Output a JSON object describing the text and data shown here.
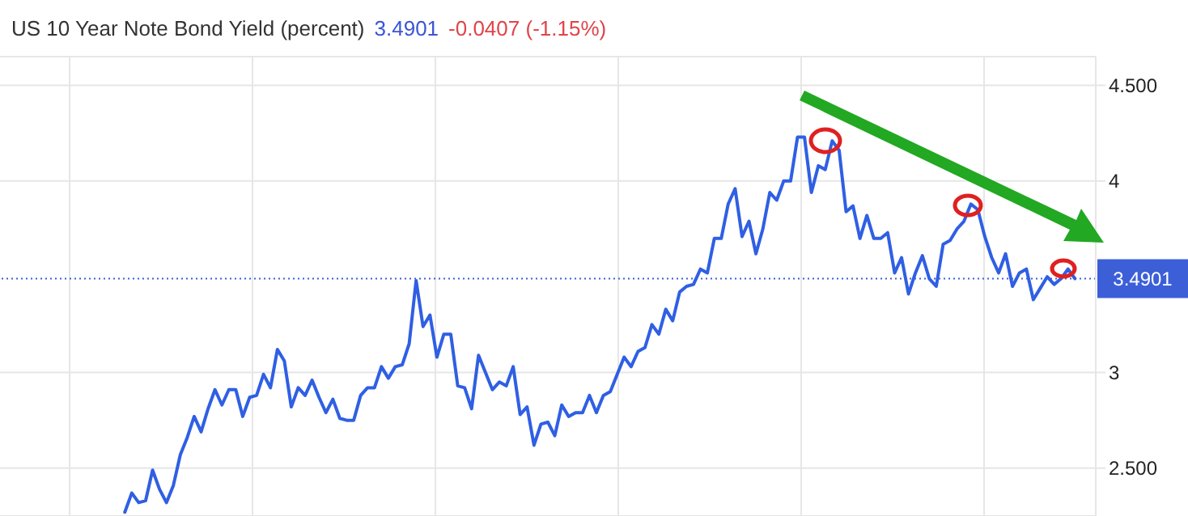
{
  "chart_data": {
    "type": "line",
    "title": "US 10 Year Note Bond Yield (percent)",
    "annotations": [
      "3.4901",
      "-0.0407 (-1.15%)"
    ],
    "categories": [
      null,
      null,
      null,
      null,
      null,
      null,
      null,
      null,
      null,
      null,
      null,
      null,
      null,
      null,
      null,
      null,
      null,
      null,
      null,
      null,
      null,
      null,
      null,
      null,
      null,
      null,
      null,
      null,
      null,
      null,
      null,
      null,
      null,
      null,
      null,
      null,
      null,
      null,
      null,
      null,
      null,
      null,
      null,
      null,
      null,
      null,
      null,
      null,
      null,
      null,
      null,
      null,
      null,
      null,
      null,
      null,
      null,
      null,
      null,
      null,
      null,
      null,
      null,
      null,
      null,
      null,
      null,
      null,
      null,
      null,
      null,
      null,
      null,
      null,
      null,
      null,
      null,
      null,
      null,
      null,
      null,
      null,
      null,
      null,
      null,
      null,
      null,
      null,
      null,
      null,
      null,
      null,
      null,
      null,
      null,
      null,
      null,
      null,
      null,
      null,
      null,
      null,
      null,
      null,
      null,
      null,
      null,
      null,
      null,
      null,
      null,
      null,
      null,
      null,
      null,
      null,
      null,
      null,
      null,
      null,
      null,
      null,
      null,
      null,
      null,
      null,
      null,
      null,
      null,
      null,
      null,
      null,
      null,
      null,
      null,
      null,
      null,
      null,
      null,
      null,
      null,
      null,
      null,
      null,
      null,
      null,
      null,
      null,
      null,
      null,
      null,
      null,
      null,
      null,
      null,
      null,
      null,
      null,
      null
    ],
    "series": [
      {
        "color": "#2f5fe3",
        "values": [
          null,
          null,
          null,
          null,
          null,
          null,
          null,
          null,
          null,
          null,
          null,
          null,
          null,
          null,
          null,
          null,
          null,
          null,
          2.27,
          2.37,
          2.32,
          2.33,
          2.49,
          2.39,
          2.32,
          2.41,
          2.57,
          2.66,
          2.77,
          2.69,
          2.81,
          2.91,
          2.83,
          2.91,
          2.91,
          2.77,
          2.87,
          2.88,
          2.99,
          2.92,
          3.12,
          3.06,
          2.82,
          2.92,
          2.88,
          2.96,
          2.87,
          2.79,
          2.86,
          2.76,
          2.75,
          2.75,
          2.88,
          2.92,
          2.92,
          3.03,
          2.97,
          3.03,
          3.04,
          3.15,
          3.48,
          3.24,
          3.3,
          3.08,
          3.2,
          3.2,
          2.93,
          2.92,
          2.81,
          3.09,
          3.0,
          2.91,
          2.95,
          2.93,
          3.03,
          2.78,
          2.82,
          2.62,
          2.73,
          2.74,
          2.67,
          2.83,
          2.77,
          2.79,
          2.79,
          2.88,
          2.79,
          2.88,
          2.9,
          2.99,
          3.08,
          3.03,
          3.11,
          3.13,
          3.25,
          3.2,
          3.33,
          3.27,
          3.42,
          3.45,
          3.46,
          3.54,
          3.52,
          3.7,
          3.7,
          3.88,
          3.96,
          3.71,
          3.79,
          3.62,
          3.75,
          3.94,
          3.9,
          4.0,
          4.0,
          4.23,
          4.23,
          3.94,
          4.08,
          4.06,
          4.21,
          4.16,
          3.84,
          3.87,
          3.7,
          3.82,
          3.7,
          3.7,
          3.73,
          3.52,
          3.6,
          3.41,
          3.52,
          3.61,
          3.49,
          3.45,
          3.67,
          3.69,
          3.75,
          3.79,
          3.88,
          3.85,
          3.71,
          3.6,
          3.52,
          3.62,
          3.45,
          3.52,
          3.54,
          3.38,
          3.44,
          3.5,
          3.46,
          3.49,
          3.54,
          3.4901,
          null,
          null,
          null
        ]
      }
    ],
    "ylim": [
      2.25,
      4.65
    ],
    "yticks": [
      {
        "value": 2.5,
        "label": "2.500"
      },
      3,
      4,
      {
        "value": 4.5,
        "label": "4.500"
      }
    ],
    "ref_lines": [
      {
        "axis": "y",
        "value": 3.4901,
        "label": "3.4901",
        "color": "#3c5fd8",
        "line_style": "dotted"
      }
    ],
    "grid": true,
    "tick_labels": "y",
    "line_style": "solid"
  }
}
